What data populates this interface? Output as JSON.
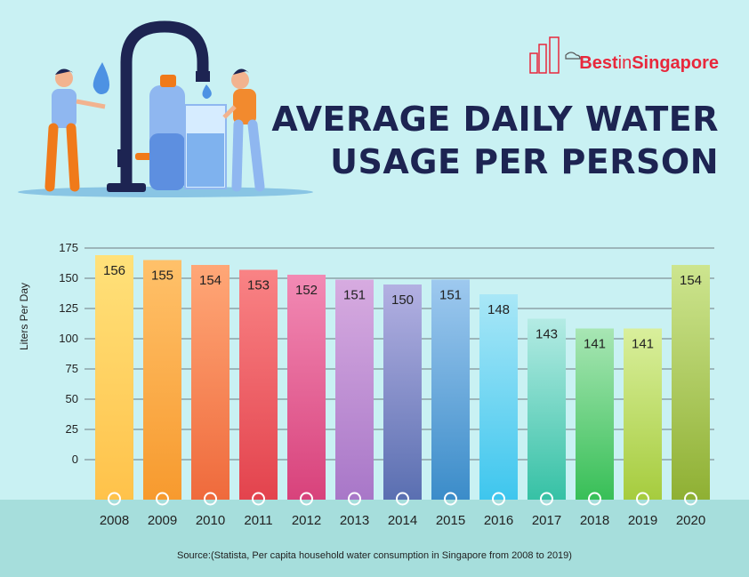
{
  "header": {
    "title_line1": "AVERAGE DAILY WATER",
    "title_line2": "USAGE PER PERSON",
    "brand_prefix": "Best",
    "brand_mid": "in",
    "brand_suffix": "Singapore"
  },
  "source": "Source:(Statista, Per capita household water consumption in Singapore from 2008 to 2019)",
  "chart_data": {
    "type": "bar",
    "categories": [
      "2008",
      "2009",
      "2010",
      "2011",
      "2012",
      "2013",
      "2014",
      "2015",
      "2016",
      "2017",
      "2018",
      "2019",
      "2020"
    ],
    "values": [
      156,
      155,
      154,
      153,
      152,
      151,
      150,
      151,
      148,
      143,
      141,
      141,
      154
    ],
    "ylabel": "Liters Per Day",
    "yticks": [
      0,
      25,
      50,
      75,
      100,
      125,
      150,
      175
    ],
    "ylim": [
      0,
      175
    ],
    "grid": true,
    "colors": [
      [
        "#ffe17a",
        "#ffc24a"
      ],
      [
        "#ffc16a",
        "#f79a2e"
      ],
      [
        "#ffa777",
        "#ef6a3c"
      ],
      [
        "#f98385",
        "#e3434d"
      ],
      [
        "#f28ab4",
        "#d8427b"
      ],
      [
        "#d7abe0",
        "#a877c8"
      ],
      [
        "#b3b0e2",
        "#5a6fb1"
      ],
      [
        "#9ec9ef",
        "#3b8cc9"
      ],
      [
        "#a9e7f7",
        "#3ec6ee"
      ],
      [
        "#b4ebe4",
        "#36c1a5"
      ],
      [
        "#a8e6b4",
        "#38bf57"
      ],
      [
        "#d9ef9c",
        "#a6cc3e"
      ],
      [
        "#cde58f",
        "#8fb033"
      ]
    ]
  }
}
